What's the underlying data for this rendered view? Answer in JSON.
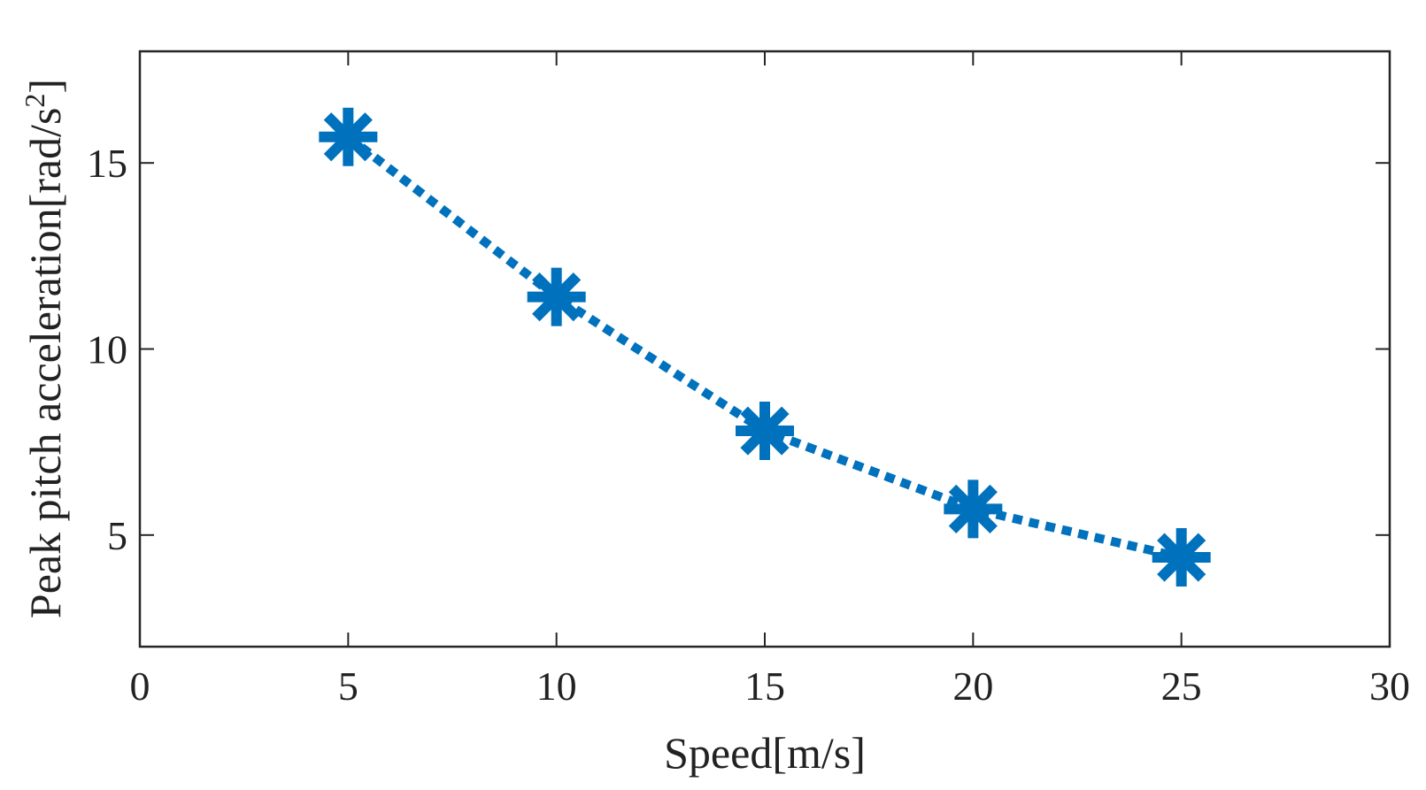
{
  "chart_data": {
    "type": "line",
    "title": "",
    "xlabel": "Speed[m/s]",
    "ylabel": {
      "main": "Peak pitch acceleration[rad/s",
      "sup": "2",
      "tail": "]"
    },
    "xlim": [
      0,
      30
    ],
    "ylim": [
      2,
      18
    ],
    "xticks": [
      0,
      5,
      10,
      15,
      20,
      25,
      30
    ],
    "yticks": [
      5,
      10,
      15
    ],
    "grid": false,
    "series": [
      {
        "name": "Peak pitch acceleration",
        "color": "#0072bd",
        "line_style": "dotted",
        "marker": "asterisk",
        "x": [
          5,
          10,
          15,
          20,
          25
        ],
        "y": [
          15.7,
          11.4,
          7.8,
          5.7,
          4.4
        ]
      }
    ]
  }
}
